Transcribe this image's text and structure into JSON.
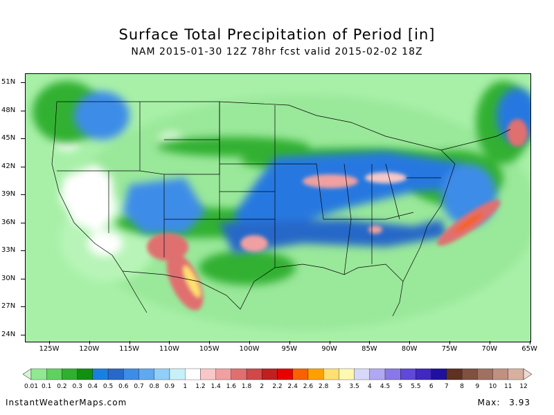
{
  "title": "Surface Total Precipitation of Period [in]",
  "subtitle": "NAM 2015-01-30 12Z 78hr fcst valid 2015-02-02 18Z",
  "footer": {
    "site": "InstantWeatherMaps.com",
    "max_label": "Max:",
    "max_value": "3.93"
  },
  "map": {
    "lat_labels": [
      "51N",
      "48N",
      "45N",
      "42N",
      "39N",
      "36N",
      "33N",
      "30N",
      "27N",
      "24N"
    ],
    "lon_labels": [
      "125W",
      "120W",
      "115W",
      "110W",
      "105W",
      "100W",
      "95W",
      "90W",
      "85W",
      "80W",
      "75W",
      "70W",
      "65W"
    ],
    "colors": {
      "land_base": "#a8f0a8",
      "dry_white": "#ffffff"
    }
  },
  "colorbar": {
    "labels": [
      "0.01",
      "0.1",
      "0.2",
      "0.3",
      "0.4",
      "0.5",
      "0.6",
      "0.7",
      "0.8",
      "0.9",
      "1",
      "1.2",
      "1.4",
      "1.6",
      "1.8",
      "2",
      "2.2",
      "2.4",
      "2.6",
      "2.8",
      "3",
      "3.5",
      "4",
      "4.5",
      "5",
      "5.5",
      "6",
      "7",
      "8",
      "9",
      "10",
      "11",
      "12"
    ],
    "colors": [
      "#d0f8d0",
      "#90e890",
      "#60d060",
      "#30b030",
      "#109010",
      "#1880e0",
      "#2868c8",
      "#3c8ce8",
      "#60a8f0",
      "#90d0f8",
      "#c8f0f8",
      "#ffffff",
      "#f8c8c8",
      "#f0a0a0",
      "#e07070",
      "#d04848",
      "#c02020",
      "#e80000",
      "#f86000",
      "#ffa000",
      "#ffe070",
      "#fff8b0",
      "#d8d8f8",
      "#b0a8f0",
      "#8878e8",
      "#6048d8",
      "#4028c0",
      "#2010a0",
      "#603020",
      "#805040",
      "#a07060",
      "#c09080",
      "#d8b0a0",
      "#f0d8d0"
    ]
  }
}
